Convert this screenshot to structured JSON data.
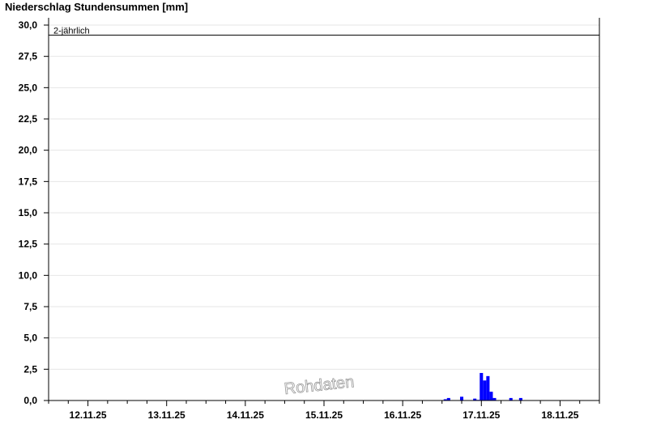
{
  "chart_data": {
    "type": "bar",
    "title": "Niederschlag Stundensummen [mm]",
    "xlabel": "",
    "ylabel": "",
    "ylim": [
      0,
      30
    ],
    "xlim": [
      "2025-11-11T12:00",
      "2025-11-18T12:00"
    ],
    "grid": true,
    "y_ticks": [
      "0,0",
      "2,5",
      "5,0",
      "7,5",
      "10,0",
      "12,5",
      "15,0",
      "17,5",
      "20,0",
      "22,5",
      "25,0",
      "27,5",
      "30,0"
    ],
    "x_ticks": [
      {
        "date": "2025-11-12T00:00",
        "label": "12.11.25"
      },
      {
        "date": "2025-11-13T00:00",
        "label": "13.11.25"
      },
      {
        "date": "2025-11-14T00:00",
        "label": "14.11.25"
      },
      {
        "date": "2025-11-15T00:00",
        "label": "15.11.25"
      },
      {
        "date": "2025-11-16T00:00",
        "label": "16.11.25"
      },
      {
        "date": "2025-11-17T00:00",
        "label": "17.11.25"
      },
      {
        "date": "2025-11-18T00:00",
        "label": "18.11.25"
      }
    ],
    "bar_color": "#0000ff",
    "series": [
      {
        "x": [
          "2025-11-16T13:00",
          "2025-11-16T14:00",
          "2025-11-16T18:00",
          "2025-11-16T22:00",
          "2025-11-16T23:00",
          "2025-11-17T00:00",
          "2025-11-17T01:00",
          "2025-11-17T02:00",
          "2025-11-17T03:00",
          "2025-11-17T04:00",
          "2025-11-17T09:00",
          "2025-11-17T12:00"
        ],
        "values": [
          0.1,
          0.2,
          0.3,
          0.15,
          0.05,
          2.2,
          1.6,
          1.95,
          0.7,
          0.2,
          0.2,
          0.2
        ]
      }
    ],
    "threshold": {
      "label": "2-jährlich",
      "value": 29.2
    },
    "watermark": "Rohdaten"
  }
}
